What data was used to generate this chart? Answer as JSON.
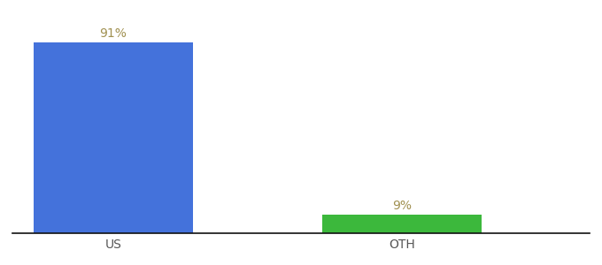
{
  "categories": [
    "US",
    "OTH"
  ],
  "values": [
    91,
    9
  ],
  "bar_colors": [
    "#4472db",
    "#3cb83c"
  ],
  "label_texts": [
    "91%",
    "9%"
  ],
  "label_color": "#a09050",
  "background_color": "#ffffff",
  "tick_color": "#555555",
  "label_fontsize": 10,
  "tick_fontsize": 10,
  "ylim": [
    0,
    105
  ],
  "bar_width": 0.55,
  "xlim": [
    -0.35,
    1.65
  ]
}
